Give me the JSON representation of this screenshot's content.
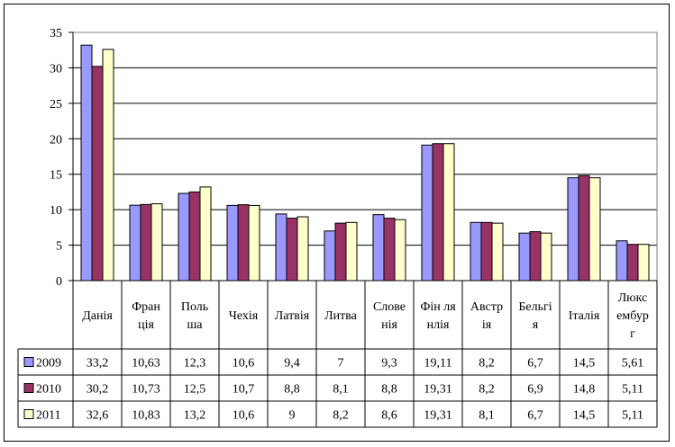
{
  "chart_data": {
    "type": "bar",
    "categories": [
      [
        "Данія"
      ],
      [
        "Фран",
        "ція"
      ],
      [
        "Поль",
        "ша"
      ],
      [
        "Чехія"
      ],
      [
        "Латвія"
      ],
      [
        "Литва"
      ],
      [
        "Слове",
        "нія"
      ],
      [
        "Фін ля",
        "нлія"
      ],
      [
        "Австр",
        "ія"
      ],
      [
        "Бельгі",
        "я"
      ],
      [
        "Італія"
      ],
      [
        "Люкс",
        "ембур",
        "г"
      ]
    ],
    "series": [
      {
        "name": "2009",
        "color": "#9999ff",
        "values": [
          33.2,
          10.63,
          12.3,
          10.6,
          9.4,
          7,
          9.3,
          19.11,
          8.2,
          6.7,
          14.5,
          5.61
        ],
        "labels": [
          "33,2",
          "10,63",
          "12,3",
          "10,6",
          "9,4",
          "7",
          "9,3",
          "19,11",
          "8,2",
          "6,7",
          "14,5",
          "5,61"
        ]
      },
      {
        "name": "2010",
        "color": "#993366",
        "values": [
          30.2,
          10.73,
          12.5,
          10.7,
          8.8,
          8.1,
          8.8,
          19.31,
          8.2,
          6.9,
          14.8,
          5.11
        ],
        "labels": [
          "30,2",
          "10,73",
          "12,5",
          "10,7",
          "8,8",
          "8,1",
          "8,8",
          "19,31",
          "8,2",
          "6,9",
          "14,8",
          "5,11"
        ]
      },
      {
        "name": "2011",
        "color": "#ffffcc",
        "values": [
          32.6,
          10.83,
          13.2,
          10.6,
          9,
          8.2,
          8.6,
          19.31,
          8.1,
          6.7,
          14.5,
          5.11
        ],
        "labels": [
          "32,6",
          "10,83",
          "13,2",
          "10,6",
          "9",
          "8,2",
          "8,6",
          "19,31",
          "8,1",
          "6,7",
          "14,5",
          "5,11"
        ]
      }
    ],
    "ylim": [
      0,
      35
    ],
    "yticks": [
      0,
      5,
      10,
      15,
      20,
      25,
      30,
      35
    ],
    "grid": true,
    "legend": "data-table"
  }
}
